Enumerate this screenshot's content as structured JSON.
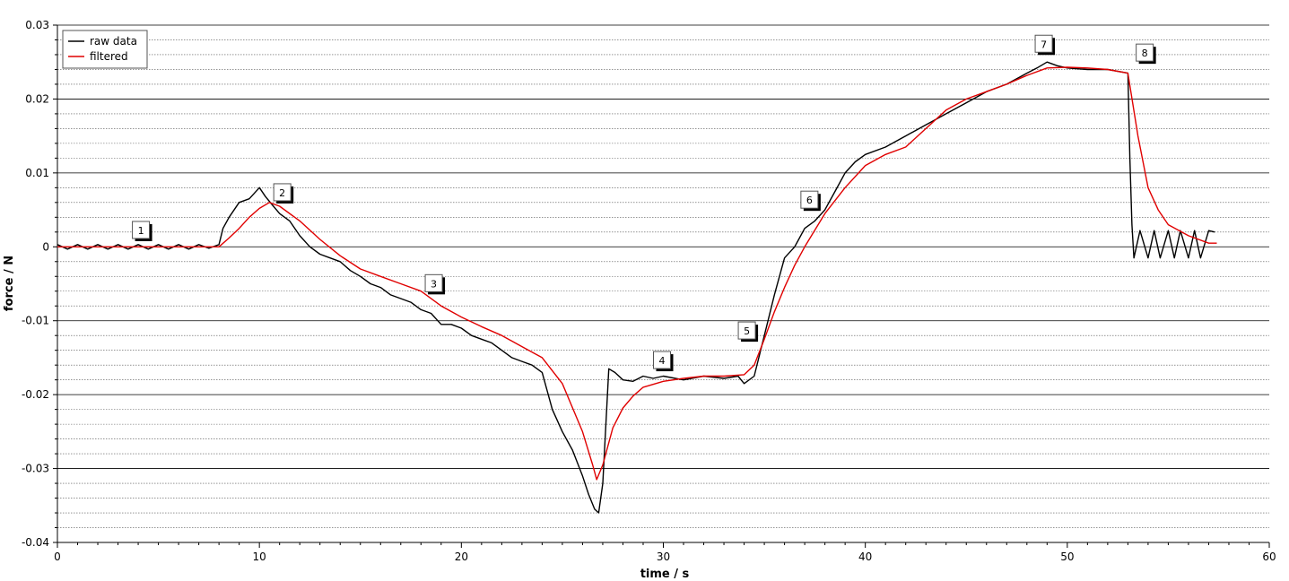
{
  "chart_data": {
    "type": "line",
    "title": "",
    "xlabel": "time / s",
    "ylabel": "force / N",
    "xlim": [
      0,
      60
    ],
    "ylim": [
      -0.04,
      0.03
    ],
    "x_ticks": [
      0,
      10,
      20,
      30,
      40,
      50,
      60
    ],
    "y_ticks": [
      -0.04,
      -0.03,
      -0.02,
      -0.01,
      0,
      0.01,
      0.02,
      0.03
    ],
    "x_tick_labels": [
      "0",
      "10",
      "20",
      "30",
      "40",
      "50",
      "60"
    ],
    "y_tick_labels": [
      "-0.04",
      "-0.03",
      "-0.02",
      "-0.01",
      "0",
      "0.01",
      "0.02",
      "0.03"
    ],
    "grid": true,
    "legend": {
      "position": "top-left",
      "entries": [
        {
          "label": "raw data",
          "color": "#000000"
        },
        {
          "label": "filtered",
          "color": "#e00000"
        }
      ]
    },
    "series": [
      {
        "name": "raw data",
        "color": "#000000",
        "x": [
          0,
          0.5,
          1,
          1.5,
          2,
          2.5,
          3,
          3.5,
          4,
          4.5,
          5,
          5.5,
          6,
          6.5,
          7,
          7.5,
          8,
          8.2,
          8.5,
          9,
          9.5,
          10,
          10.3,
          10.6,
          11,
          11.5,
          12,
          12.5,
          13,
          13.5,
          14,
          14.5,
          15,
          15.5,
          16,
          16.5,
          17,
          17.5,
          18,
          18.5,
          19,
          19.5,
          20,
          20.5,
          21,
          21.5,
          22,
          22.5,
          23,
          23.5,
          24,
          24.5,
          25,
          25.5,
          26,
          26.3,
          26.6,
          26.8,
          27,
          27.3,
          27.6,
          28,
          28.5,
          29,
          29.5,
          30,
          31,
          32,
          33,
          33.7,
          34,
          34.5,
          35,
          35.5,
          36,
          36.5,
          37,
          37.5,
          38,
          38.5,
          39,
          39.5,
          40,
          41,
          42,
          43,
          44,
          45,
          46,
          47,
          48,
          48.5,
          49,
          49.5,
          50,
          51,
          52,
          53,
          53.1,
          53.2,
          53.3,
          53.6,
          54,
          54.3,
          54.6,
          55,
          55.3,
          55.6,
          56,
          56.3,
          56.6,
          57,
          57.3
        ],
        "y": [
          0.0003,
          -0.0003,
          0.0003,
          -0.0003,
          0.0003,
          -0.0003,
          0.0003,
          -0.0003,
          0.0003,
          -0.0003,
          0.0003,
          -0.0003,
          0.0003,
          -0.0003,
          0.0003,
          -0.0002,
          0.0003,
          0.0025,
          0.004,
          0.006,
          0.0065,
          0.008,
          0.0068,
          0.0058,
          0.0045,
          0.0035,
          0.0015,
          0.0,
          -0.001,
          -0.0015,
          -0.002,
          -0.0032,
          -0.004,
          -0.005,
          -0.0055,
          -0.0065,
          -0.007,
          -0.0075,
          -0.0085,
          -0.009,
          -0.0105,
          -0.0105,
          -0.011,
          -0.012,
          -0.0125,
          -0.013,
          -0.014,
          -0.015,
          -0.0155,
          -0.016,
          -0.017,
          -0.022,
          -0.025,
          -0.0275,
          -0.031,
          -0.0335,
          -0.0355,
          -0.036,
          -0.032,
          -0.0165,
          -0.017,
          -0.018,
          -0.0182,
          -0.0175,
          -0.0178,
          -0.0175,
          -0.018,
          -0.0175,
          -0.0178,
          -0.0175,
          -0.0185,
          -0.0175,
          -0.012,
          -0.0065,
          -0.0015,
          0.0,
          0.0025,
          0.0035,
          0.005,
          0.0075,
          0.01,
          0.0115,
          0.0125,
          0.0135,
          0.015,
          0.0165,
          0.018,
          0.0195,
          0.021,
          0.022,
          0.0235,
          0.0242,
          0.025,
          0.0245,
          0.0242,
          0.024,
          0.024,
          0.0235,
          0.012,
          0.003,
          -0.0015,
          0.0022,
          -0.0015,
          0.0022,
          -0.0015,
          0.0022,
          -0.0015,
          0.0022,
          -0.0015,
          0.0022,
          -0.0015,
          0.0022,
          0.002
        ]
      },
      {
        "name": "filtered",
        "color": "#e00000",
        "x": [
          0,
          2,
          4,
          6,
          8,
          8.5,
          9,
          9.5,
          10,
          10.5,
          11,
          12,
          13,
          14,
          15,
          16,
          17,
          18,
          19,
          20,
          21,
          22,
          23,
          24,
          25,
          26,
          26.5,
          26.7,
          27,
          27.5,
          28,
          28.5,
          29,
          30,
          31,
          32,
          33,
          34,
          34.5,
          35,
          35.5,
          36,
          36.5,
          37,
          38,
          39,
          40,
          41,
          42,
          43,
          44,
          45,
          46,
          47,
          48,
          49,
          50,
          51,
          52,
          53,
          53.5,
          54,
          54.5,
          55,
          56,
          57,
          57.4
        ],
        "y": [
          0,
          0,
          0,
          0,
          0,
          0.0012,
          0.0025,
          0.004,
          0.0052,
          0.006,
          0.0055,
          0.0035,
          0.001,
          -0.0012,
          -0.003,
          -0.004,
          -0.005,
          -0.006,
          -0.008,
          -0.0095,
          -0.0108,
          -0.012,
          -0.0135,
          -0.015,
          -0.0185,
          -0.025,
          -0.0295,
          -0.0315,
          -0.0295,
          -0.0245,
          -0.0218,
          -0.0202,
          -0.019,
          -0.0182,
          -0.0178,
          -0.0175,
          -0.0175,
          -0.0173,
          -0.016,
          -0.0125,
          -0.0088,
          -0.0055,
          -0.0025,
          0.0,
          0.0045,
          0.008,
          0.011,
          0.0125,
          0.0135,
          0.016,
          0.0185,
          0.02,
          0.021,
          0.022,
          0.0232,
          0.0242,
          0.0243,
          0.0242,
          0.024,
          0.0235,
          0.015,
          0.008,
          0.005,
          0.003,
          0.0015,
          0.0005,
          0.0005
        ]
      }
    ],
    "annotations": [
      {
        "label": "1",
        "x": 4.2,
        "y": 0.0021
      },
      {
        "label": "2",
        "x": 11.2,
        "y": 0.0072
      },
      {
        "label": "3",
        "x": 18.7,
        "y": -0.0051
      },
      {
        "label": "4",
        "x": 30.0,
        "y": -0.0155
      },
      {
        "label": "5",
        "x": 34.2,
        "y": -0.0115
      },
      {
        "label": "6",
        "x": 37.3,
        "y": 0.0062
      },
      {
        "label": "7",
        "x": 48.9,
        "y": 0.0273
      },
      {
        "label": "8",
        "x": 53.9,
        "y": 0.0261
      }
    ]
  }
}
